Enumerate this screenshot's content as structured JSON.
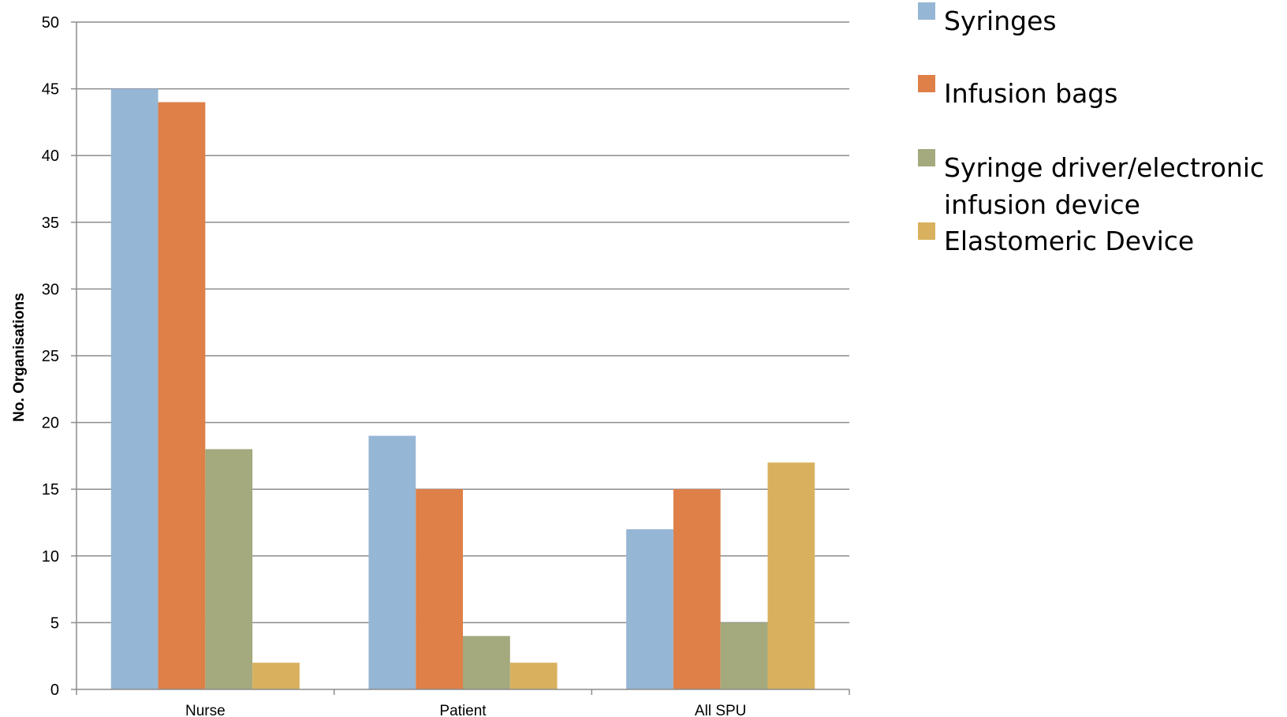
{
  "chart_data": {
    "type": "bar",
    "categories": [
      "Nurse",
      "Patient",
      "All SPU"
    ],
    "series": [
      {
        "name": "Syringes",
        "values": [
          45,
          19,
          12
        ],
        "color": "#96b6d5"
      },
      {
        "name": "Infusion bags",
        "values": [
          44,
          15,
          15
        ],
        "color": "#de8048"
      },
      {
        "name": "Syringe driver/electronic infusion device",
        "legend_lines": [
          "Syringe driver/electronic",
          "infusion device"
        ],
        "values": [
          18,
          4,
          5
        ],
        "color": "#a4a97e"
      },
      {
        "name": "Elastomeric Device",
        "values": [
          2,
          2,
          17
        ],
        "color": "#d9b15e"
      }
    ],
    "title": "",
    "xlabel": "",
    "ylabel": "No. Organisations",
    "ylim": [
      0,
      50
    ],
    "yticks": [
      0,
      5,
      10,
      15,
      20,
      25,
      30,
      35,
      40,
      45,
      50
    ],
    "grid": true,
    "legend_position": "right"
  }
}
